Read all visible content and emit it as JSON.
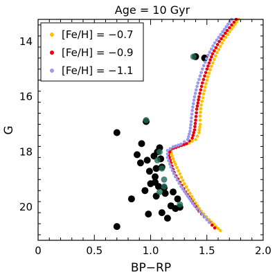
{
  "chart_data": {
    "type": "scatter",
    "title": "Age = 10 Gyr",
    "xlabel": "BP−RP",
    "ylabel": "G",
    "xlim": [
      0,
      2.0
    ],
    "ylim": [
      21.2,
      13.2
    ],
    "y_inverted": true,
    "x_ticks": [
      0,
      0.5,
      1.0,
      1.5,
      2.0
    ],
    "x_tick_labels": [
      "0",
      "0.5",
      "1.0",
      "1.5",
      "2.0"
    ],
    "y_ticks": [
      14,
      16,
      18,
      20
    ],
    "y_tick_labels": [
      "14",
      "16",
      "18",
      "20"
    ],
    "legend_position": "top-left",
    "series": [
      {
        "name": "[Fe/H] = −0.7",
        "color": "#ffc000",
        "kind": "isochrone",
        "points": [
          [
            1.62,
            20.85
          ],
          [
            1.58,
            20.7
          ],
          [
            1.52,
            20.45
          ],
          [
            1.45,
            20.15
          ],
          [
            1.4,
            19.85
          ],
          [
            1.35,
            19.5
          ],
          [
            1.3,
            19.15
          ],
          [
            1.26,
            18.8
          ],
          [
            1.22,
            18.45
          ],
          [
            1.19,
            18.15
          ],
          [
            1.18,
            17.95
          ],
          [
            1.21,
            17.82
          ],
          [
            1.28,
            17.75
          ],
          [
            1.34,
            17.68
          ],
          [
            1.4,
            17.55
          ],
          [
            1.43,
            17.3
          ],
          [
            1.44,
            17.0
          ],
          [
            1.44,
            16.7
          ],
          [
            1.45,
            16.3
          ],
          [
            1.47,
            15.9
          ],
          [
            1.5,
            15.4
          ],
          [
            1.54,
            14.9
          ],
          [
            1.59,
            14.4
          ],
          [
            1.65,
            13.95
          ],
          [
            1.72,
            13.55
          ],
          [
            1.78,
            13.2
          ]
        ]
      },
      {
        "name": "[Fe/H] = −0.9",
        "color": "#e8000b",
        "kind": "isochrone",
        "points": [
          [
            1.57,
            20.75
          ],
          [
            1.5,
            20.45
          ],
          [
            1.43,
            20.15
          ],
          [
            1.37,
            19.8
          ],
          [
            1.31,
            19.45
          ],
          [
            1.26,
            19.1
          ],
          [
            1.21,
            18.75
          ],
          [
            1.18,
            18.4
          ],
          [
            1.16,
            18.1
          ],
          [
            1.18,
            17.9
          ],
          [
            1.25,
            17.8
          ],
          [
            1.32,
            17.7
          ],
          [
            1.37,
            17.5
          ],
          [
            1.39,
            17.2
          ],
          [
            1.4,
            16.85
          ],
          [
            1.41,
            16.45
          ],
          [
            1.43,
            16.0
          ],
          [
            1.46,
            15.5
          ],
          [
            1.5,
            15.0
          ],
          [
            1.55,
            14.45
          ],
          [
            1.61,
            14.0
          ],
          [
            1.68,
            13.6
          ],
          [
            1.76,
            13.2
          ]
        ]
      },
      {
        "name": "[Fe/H] = −1.1",
        "color": "#9999ee",
        "kind": "isochrone",
        "points": [
          [
            1.52,
            20.55
          ],
          [
            1.46,
            20.25
          ],
          [
            1.39,
            19.95
          ],
          [
            1.33,
            19.6
          ],
          [
            1.27,
            19.25
          ],
          [
            1.22,
            18.9
          ],
          [
            1.18,
            18.55
          ],
          [
            1.15,
            18.2
          ],
          [
            1.15,
            17.95
          ],
          [
            1.2,
            17.82
          ],
          [
            1.27,
            17.72
          ],
          [
            1.33,
            17.55
          ],
          [
            1.35,
            17.25
          ],
          [
            1.36,
            16.9
          ],
          [
            1.37,
            16.5
          ],
          [
            1.39,
            16.0
          ],
          [
            1.42,
            15.5
          ],
          [
            1.46,
            15.0
          ],
          [
            1.51,
            14.5
          ],
          [
            1.57,
            14.05
          ],
          [
            1.64,
            13.65
          ],
          [
            1.72,
            13.2
          ]
        ]
      },
      {
        "name": "",
        "color": "#000000",
        "kind": "stars",
        "points": [
          [
            0.7,
            17.3
          ],
          [
            0.96,
            16.9
          ],
          [
            0.92,
            17.7
          ],
          [
            0.88,
            18.1
          ],
          [
            0.91,
            18.4
          ],
          [
            0.97,
            18.3
          ],
          [
            1.03,
            18.15
          ],
          [
            1.06,
            18.0
          ],
          [
            1.08,
            17.85
          ],
          [
            0.99,
            18.7
          ],
          [
            1.05,
            18.6
          ],
          [
            1.1,
            18.55
          ],
          [
            1.04,
            18.9
          ],
          [
            1.0,
            19.15
          ],
          [
            1.07,
            19.25
          ],
          [
            1.12,
            19.3
          ],
          [
            0.95,
            19.4
          ],
          [
            0.83,
            19.7
          ],
          [
            1.05,
            19.6
          ],
          [
            1.13,
            19.5
          ],
          [
            1.2,
            19.45
          ],
          [
            1.24,
            19.7
          ],
          [
            1.18,
            19.95
          ],
          [
            1.22,
            20.05
          ],
          [
            1.26,
            20.0
          ],
          [
            1.1,
            20.2
          ],
          [
            0.98,
            20.25
          ],
          [
            1.15,
            20.4
          ],
          [
            0.7,
            20.7
          ],
          [
            1.04,
            19.1
          ],
          [
            1.09,
            18.25
          ],
          [
            1.4,
            14.55
          ],
          [
            1.48,
            14.6
          ]
        ]
      },
      {
        "name": "",
        "color": "#1f6b5a",
        "kind": "stars",
        "points": [
          [
            0.96,
            16.85
          ],
          [
            1.08,
            18.0
          ],
          [
            1.06,
            18.3
          ],
          [
            1.1,
            18.6
          ],
          [
            1.12,
            19.0
          ],
          [
            1.12,
            19.25
          ],
          [
            1.08,
            19.45
          ],
          [
            1.26,
            19.9
          ],
          [
            1.38,
            14.55
          ]
        ]
      }
    ]
  }
}
